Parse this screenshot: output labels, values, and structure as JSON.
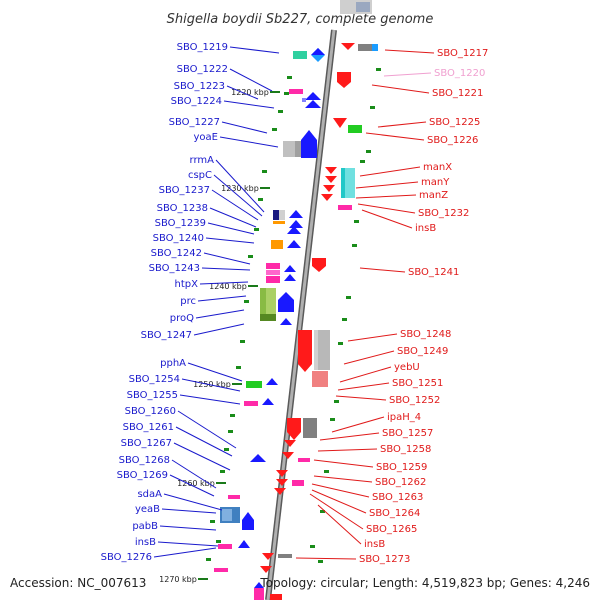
{
  "title": "Shigella boydii Sb227, complete genome",
  "accession_label": "Accession: NC_007613",
  "topology_label": "Topology: circular; Length: 4,519,823 bp; Genes: 4,246",
  "colors": {
    "left_label": "#1a1acc",
    "right_label": "#e01a1a",
    "faded_label": "#f0a0d0",
    "strand_fwd": "#1919ff",
    "strand_rev": "#ff1a1a",
    "backbone": "#8a8a8a"
  },
  "kbp_ticks": [
    "1220 kbp",
    "1230 kbp",
    "1240 kbp",
    "1250 kbp",
    "1260 kbp",
    "1270 kbp"
  ],
  "left_genes": [
    "SBO_1219",
    "SBO_1222",
    "SBO_1223",
    "SBO_1224",
    "SBO_1227",
    "yoaE",
    "rrmA",
    "cspC",
    "SBO_1237",
    "SBO_1238",
    "SBO_1239",
    "SBO_1240",
    "SBO_1242",
    "SBO_1243",
    "htpX",
    "prc",
    "proQ",
    "SBO_1247",
    "pphA",
    "SBO_1254",
    "SBO_1255",
    "SBO_1260",
    "SBO_1261",
    "SBO_1267",
    "SBO_1268",
    "SBO_1269",
    "sdaA",
    "yeaB",
    "pabB",
    "insB",
    "SBO_1276"
  ],
  "right_genes": [
    "SBO_1217",
    "SBO_1220",
    "SBO_1221",
    "SBO_1225",
    "SBO_1226",
    "manX",
    "manY",
    "manZ",
    "SBO_1232",
    "insB",
    "SBO_1241",
    "SBO_1248",
    "SBO_1249",
    "yebU",
    "SBO_1251",
    "SBO_1252",
    "ipaH_4",
    "SBO_1257",
    "SBO_1258",
    "SBO_1259",
    "SBO_1262",
    "SBO_1263",
    "SBO_1264",
    "SBO_1265",
    "insB",
    "SBO_1273"
  ]
}
